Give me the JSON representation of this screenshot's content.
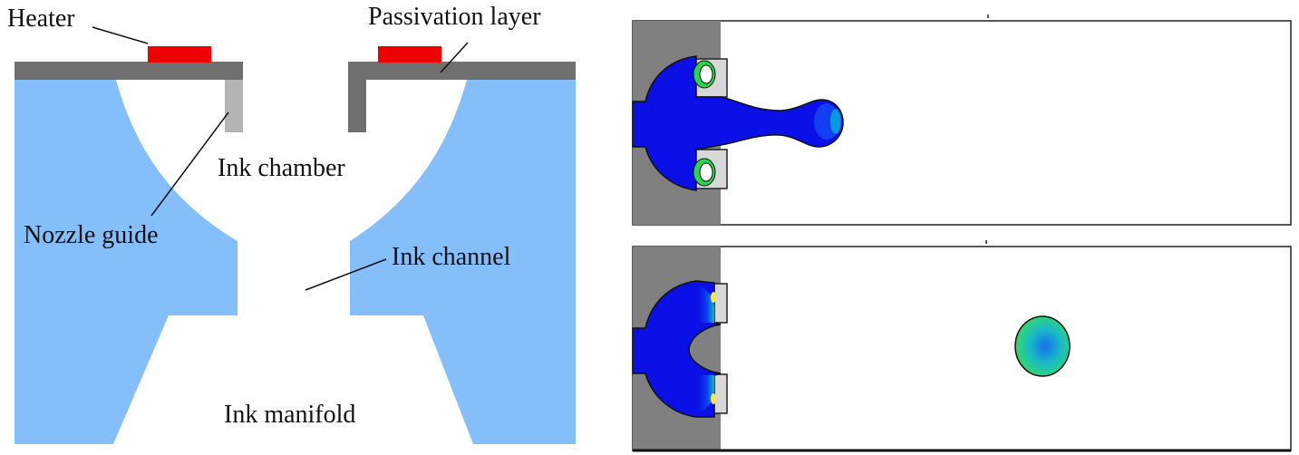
{
  "labels": {
    "heater": "Heater",
    "passivation_layer": "Passivation layer",
    "ink_chamber": "Ink chamber",
    "nozzle_guide": "Nozzle guide",
    "ink_channel": "Ink channel",
    "ink_manifold": "Ink manifold"
  },
  "colors": {
    "substrate_blue": "#85bffb",
    "heater_red": "#ee0000",
    "passivation_gray": "#707070",
    "nozzle_guide_gray": "#b4b4b4",
    "wall_gray": "#808080",
    "ink_blue": "#0a10e6",
    "ink_cyan": "#00b4d0",
    "ink_green": "#2ad64a",
    "ink_yellow": "#f4e84a"
  },
  "simulation_panels": [
    {
      "name": "drop-ejection-stage-1",
      "state": "ligament attached to nozzle"
    },
    {
      "name": "drop-ejection-stage-2",
      "state": "detached droplet in flight"
    }
  ]
}
